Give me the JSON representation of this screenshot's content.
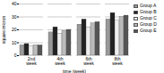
{
  "chart_data": {
    "type": "bar",
    "xlabel": "time (week)",
    "ylabel": "square micron",
    "categories": [
      "2nd\nweek",
      "4th\nweek",
      "6th\nweek",
      "8th\nweek"
    ],
    "series": [
      {
        "name": "Group A",
        "color": "#999999",
        "values": [
          8,
          18,
          24,
          28
        ]
      },
      {
        "name": "Group B",
        "color": "#222222",
        "values": [
          9,
          22,
          28,
          33
        ]
      },
      {
        "name": "Group C",
        "color": "#eeeeee",
        "values": [
          7,
          17,
          22,
          27
        ]
      },
      {
        "name": "Group D",
        "color": "#bbbbbb",
        "values": [
          8,
          19,
          25,
          30
        ]
      },
      {
        "name": "Group E",
        "color": "#555555",
        "values": [
          8,
          20,
          26,
          31
        ]
      }
    ],
    "ylim": [
      0,
      40
    ],
    "yticks": [
      0,
      10,
      20,
      30,
      40
    ],
    "grid": true,
    "legend": "right"
  }
}
